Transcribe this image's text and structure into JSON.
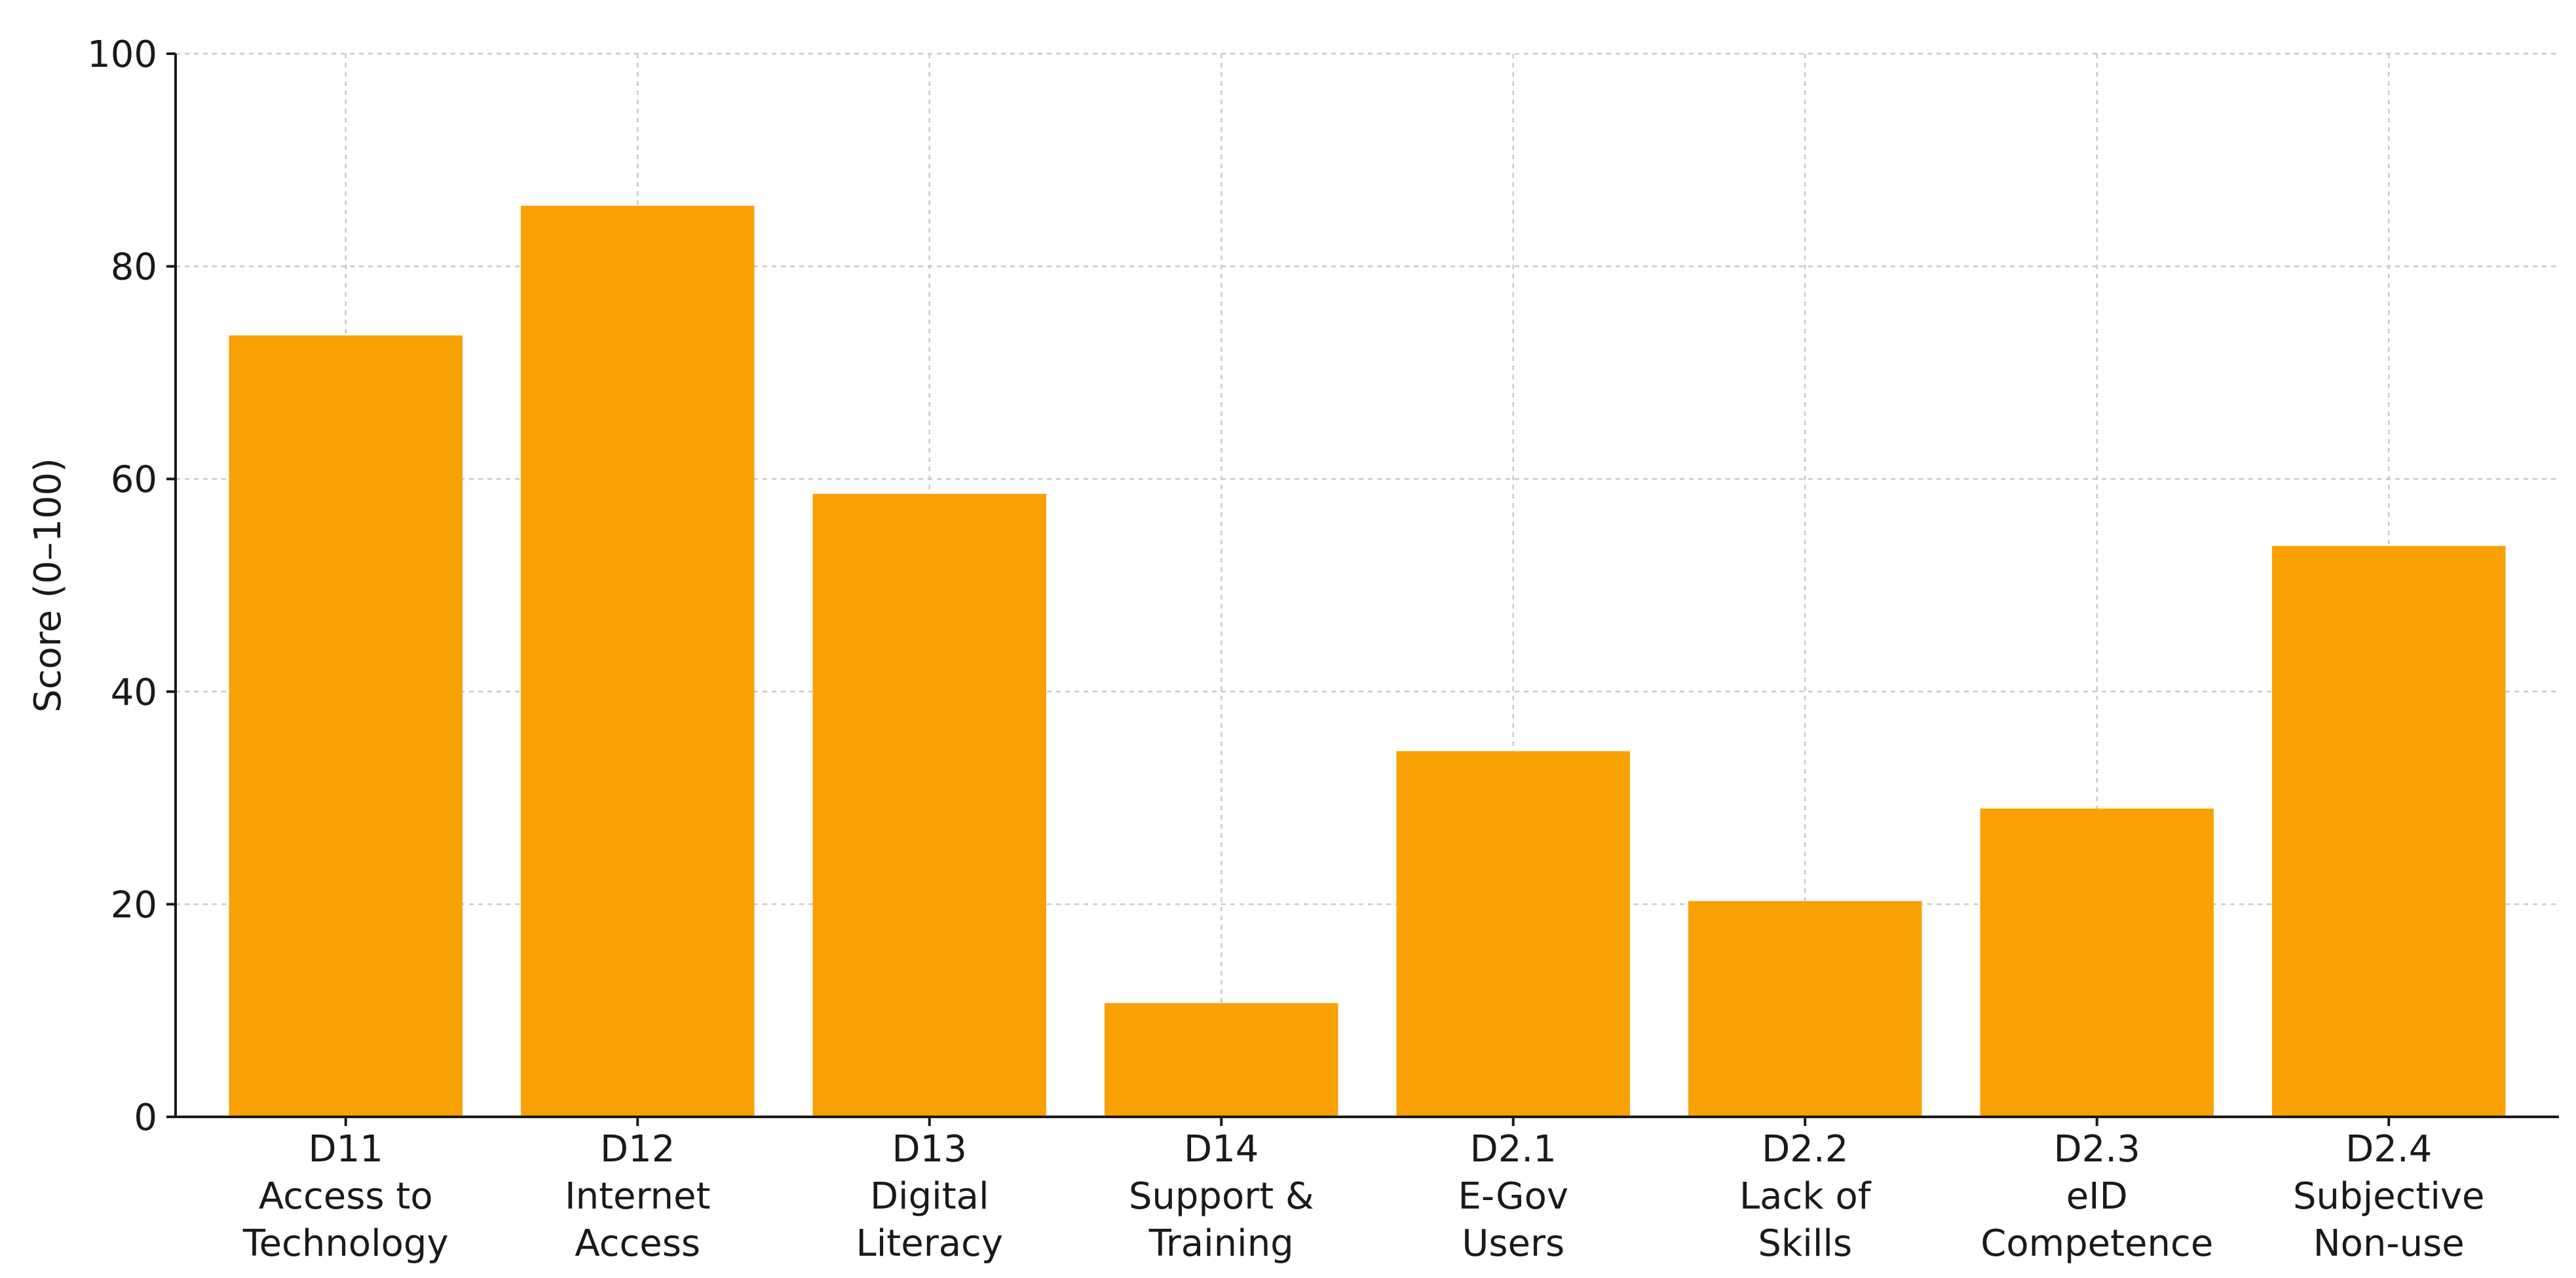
{
  "chart_data": {
    "type": "bar",
    "title": "",
    "xlabel": "",
    "ylabel": "Score (0–100)",
    "ylim": [
      0,
      100
    ],
    "yticks": [
      0,
      20,
      40,
      60,
      80,
      100
    ],
    "grid": true,
    "bar_color": "#f9a003",
    "categories": [
      [
        "D11",
        "Access to",
        "Technology"
      ],
      [
        "D12",
        "Internet",
        "Access"
      ],
      [
        "D13",
        "Digital",
        "Literacy"
      ],
      [
        "D14",
        "Support &",
        "Training"
      ],
      [
        "D2.1",
        "E-Gov",
        "Users"
      ],
      [
        "D2.2",
        "Lack of",
        "Skills"
      ],
      [
        "D2.3",
        "eID",
        "Competence"
      ],
      [
        "D2.4",
        "Subjective",
        "Non-use"
      ]
    ],
    "values": [
      73.5,
      85.7,
      58.6,
      10.7,
      34.4,
      20.3,
      29.0,
      53.7
    ]
  }
}
